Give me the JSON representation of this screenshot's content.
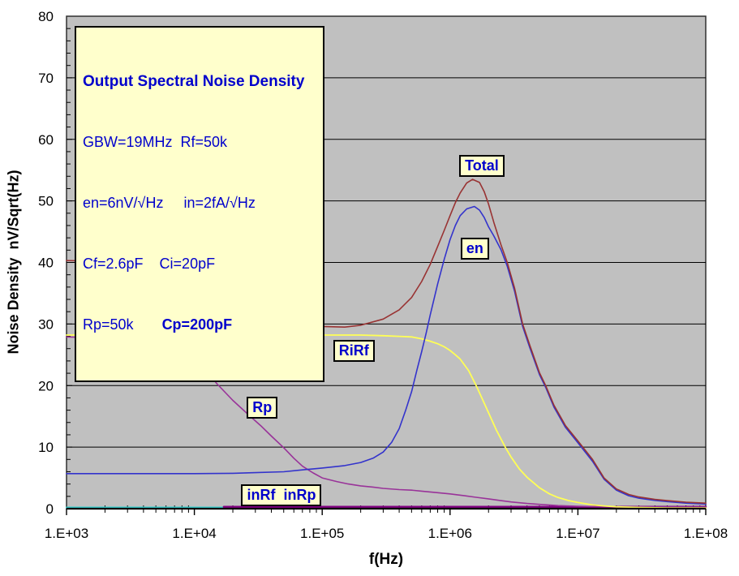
{
  "colors": {
    "plot_bg": "#C0C0C0",
    "plot_border": "#303030",
    "grid": "#000000",
    "axis": "#000000",
    "label_box_bg": "#FFFFCC",
    "label_text": "#0000CC"
  },
  "info_box": {
    "title": "Output Spectral Noise Density",
    "line1": "GBW=19MHz  Rf=50k",
    "line2": "en=6nV/√Hz     in=2fA/√Hz",
    "line3": "Cf=2.6pF    Ci=20pF",
    "line4_normal": "Rp=50k       ",
    "line4_bold": "Cp=200pF"
  },
  "chart_data": {
    "type": "line",
    "title": "Output Spectral Noise Density",
    "xlabel": "f(Hz)",
    "ylabel": "Noise Density  nV/Sqrt(Hz)",
    "x_scale": "log",
    "xlim": [
      1000,
      100000000
    ],
    "ylim": [
      0,
      80
    ],
    "grid": "horizontal-major",
    "legend_position": "inline-labels",
    "x_tick_labels": [
      "1.E+03",
      "1.E+04",
      "1.E+05",
      "1.E+06",
      "1.E+07",
      "1.E+08"
    ],
    "y_tick_labels": [
      "0",
      "10",
      "20",
      "30",
      "40",
      "50",
      "60",
      "70",
      "80"
    ],
    "y_major_step": 10,
    "y_minor_step": 2,
    "curve_labels": [
      {
        "text": "Total",
        "f": 1180000,
        "v": 57.5
      },
      {
        "text": "en",
        "f": 1210000,
        "v": 44.0
      },
      {
        "text": "RiRf",
        "f": 122000,
        "v": 27.4
      },
      {
        "text": "Rp",
        "f": 25700,
        "v": 18.2
      },
      {
        "text": "inRf  inRp",
        "f": 23300,
        "v": 3.95
      }
    ],
    "series": [
      {
        "name": "inRp",
        "color": "#33CCCC",
        "width": 2,
        "points": [
          [
            1000,
            0.2
          ],
          [
            19000,
            0.2
          ]
        ]
      },
      {
        "name": "inRf",
        "color": "#800080",
        "width": 2.5,
        "points": [
          [
            17000,
            0.3
          ],
          [
            100000000,
            0.3
          ]
        ]
      },
      {
        "name": "Rp",
        "color": "#993399",
        "width": 1.6,
        "points": [
          [
            1000,
            27.9
          ],
          [
            1500,
            27.8
          ],
          [
            2000,
            27.6
          ],
          [
            3000,
            27.1
          ],
          [
            4000,
            26.6
          ],
          [
            5000,
            26.0
          ],
          [
            7000,
            25.1
          ],
          [
            10000,
            24.0
          ],
          [
            12000,
            22.8
          ],
          [
            15000,
            20.3
          ],
          [
            20000,
            17.6
          ],
          [
            27000,
            15.1
          ],
          [
            33000,
            13.5
          ],
          [
            40000,
            11.8
          ],
          [
            50000,
            9.9
          ],
          [
            60000,
            8.2
          ],
          [
            70000,
            6.9
          ],
          [
            85000,
            5.8
          ],
          [
            100000,
            5.0
          ],
          [
            130000,
            4.4
          ],
          [
            160000,
            4.0
          ],
          [
            200000,
            3.7
          ],
          [
            250000,
            3.5
          ],
          [
            300000,
            3.3
          ],
          [
            400000,
            3.1
          ],
          [
            500000,
            3.0
          ],
          [
            600000,
            2.85
          ],
          [
            800000,
            2.6
          ],
          [
            1000000,
            2.4
          ],
          [
            1300000,
            2.1
          ],
          [
            1600000,
            1.85
          ],
          [
            2000000,
            1.6
          ],
          [
            2500000,
            1.3
          ],
          [
            3000000,
            1.1
          ],
          [
            4000000,
            0.85
          ],
          [
            5000000,
            0.7
          ],
          [
            7000000,
            0.5
          ],
          [
            10000000,
            0.4
          ],
          [
            15000000,
            0.33
          ],
          [
            20000000,
            0.3
          ],
          [
            50000000,
            0.28
          ],
          [
            100000000,
            0.27
          ]
        ]
      },
      {
        "name": "RiRf",
        "color": "#FFFF55",
        "width": 1.8,
        "points": [
          [
            1000,
            28.2
          ],
          [
            100000,
            28.2
          ],
          [
            200000,
            28.2
          ],
          [
            300000,
            28.1
          ],
          [
            400000,
            28.0
          ],
          [
            500000,
            27.9
          ],
          [
            600000,
            27.6
          ],
          [
            700000,
            27.2
          ],
          [
            800000,
            26.8
          ],
          [
            900000,
            26.3
          ],
          [
            1000000,
            25.7
          ],
          [
            1100000,
            25.0
          ],
          [
            1200000,
            24.3
          ],
          [
            1400000,
            22.4
          ],
          [
            1600000,
            20.0
          ],
          [
            1800000,
            17.7
          ],
          [
            2000000,
            15.6
          ],
          [
            2300000,
            12.8
          ],
          [
            2700000,
            10.0
          ],
          [
            3000000,
            8.4
          ],
          [
            3500000,
            6.4
          ],
          [
            4000000,
            5.1
          ],
          [
            5000000,
            3.4
          ],
          [
            6000000,
            2.4
          ],
          [
            7000000,
            1.8
          ],
          [
            8500000,
            1.3
          ],
          [
            10000000,
            1.0
          ],
          [
            13000000,
            0.6
          ],
          [
            16000000,
            0.45
          ],
          [
            20000000,
            0.3
          ],
          [
            30000000,
            0.2
          ],
          [
            50000000,
            0.12
          ],
          [
            100000000,
            0.1
          ]
        ]
      },
      {
        "name": "en",
        "color": "#3333CC",
        "width": 1.6,
        "points": [
          [
            1000,
            5.7
          ],
          [
            10000,
            5.7
          ],
          [
            20000,
            5.75
          ],
          [
            30000,
            5.85
          ],
          [
            50000,
            6.0
          ],
          [
            70000,
            6.3
          ],
          [
            100000,
            6.6
          ],
          [
            150000,
            7.0
          ],
          [
            200000,
            7.5
          ],
          [
            250000,
            8.2
          ],
          [
            300000,
            9.2
          ],
          [
            350000,
            10.8
          ],
          [
            400000,
            13.0
          ],
          [
            450000,
            16.0
          ],
          [
            500000,
            19.0
          ],
          [
            550000,
            22.5
          ],
          [
            600000,
            25.5
          ],
          [
            650000,
            28.5
          ],
          [
            700000,
            31.5
          ],
          [
            800000,
            36.5
          ],
          [
            900000,
            40.5
          ],
          [
            1000000,
            43.7
          ],
          [
            1100000,
            46.0
          ],
          [
            1200000,
            47.6
          ],
          [
            1350000,
            48.7
          ],
          [
            1550000,
            49.1
          ],
          [
            1700000,
            48.5
          ],
          [
            1850000,
            47.3
          ],
          [
            2000000,
            45.8
          ],
          [
            2200000,
            44.3
          ],
          [
            2500000,
            42.1
          ],
          [
            2800000,
            39.4
          ],
          [
            3200000,
            35.3
          ],
          [
            3700000,
            29.6
          ],
          [
            4200000,
            26.2
          ],
          [
            5000000,
            21.8
          ],
          [
            5600000,
            19.7
          ],
          [
            6500000,
            16.5
          ],
          [
            8000000,
            13.2
          ],
          [
            10000000,
            10.7
          ],
          [
            13000000,
            7.7
          ],
          [
            16000000,
            4.8
          ],
          [
            20000000,
            3.0
          ],
          [
            25000000,
            2.1
          ],
          [
            30000000,
            1.7
          ],
          [
            40000000,
            1.35
          ],
          [
            50000000,
            1.15
          ],
          [
            70000000,
            0.9
          ],
          [
            100000000,
            0.75
          ]
        ]
      },
      {
        "name": "Total",
        "color": "#993333",
        "width": 1.6,
        "points": [
          [
            1000,
            40.3
          ],
          [
            2000,
            40.2
          ],
          [
            3000,
            40.0
          ],
          [
            5000,
            39.3
          ],
          [
            7000,
            38.5
          ],
          [
            10000,
            37.5
          ],
          [
            15000,
            35.9
          ],
          [
            20000,
            34.5
          ],
          [
            30000,
            32.5
          ],
          [
            50000,
            30.5
          ],
          [
            70000,
            29.9
          ],
          [
            100000,
            29.6
          ],
          [
            150000,
            29.5
          ],
          [
            200000,
            29.8
          ],
          [
            300000,
            30.8
          ],
          [
            400000,
            32.3
          ],
          [
            500000,
            34.3
          ],
          [
            600000,
            36.9
          ],
          [
            700000,
            39.7
          ],
          [
            800000,
            42.6
          ],
          [
            900000,
            45.2
          ],
          [
            1000000,
            47.6
          ],
          [
            1100000,
            49.7
          ],
          [
            1200000,
            51.3
          ],
          [
            1350000,
            52.9
          ],
          [
            1500000,
            53.5
          ],
          [
            1700000,
            53.0
          ],
          [
            1850000,
            51.5
          ],
          [
            2000000,
            49.5
          ],
          [
            2200000,
            46.5
          ],
          [
            2500000,
            42.9
          ],
          [
            2800000,
            40.0
          ],
          [
            3200000,
            35.8
          ],
          [
            3700000,
            30.0
          ],
          [
            4200000,
            26.6
          ],
          [
            5000000,
            22.1
          ],
          [
            5600000,
            20.0
          ],
          [
            6500000,
            16.8
          ],
          [
            8000000,
            13.5
          ],
          [
            10000000,
            11.0
          ],
          [
            13000000,
            8.0
          ],
          [
            16000000,
            5.0
          ],
          [
            20000000,
            3.2
          ],
          [
            25000000,
            2.3
          ],
          [
            30000000,
            1.9
          ],
          [
            40000000,
            1.5
          ],
          [
            50000000,
            1.3
          ],
          [
            70000000,
            1.05
          ],
          [
            100000000,
            0.9
          ]
        ]
      }
    ]
  }
}
